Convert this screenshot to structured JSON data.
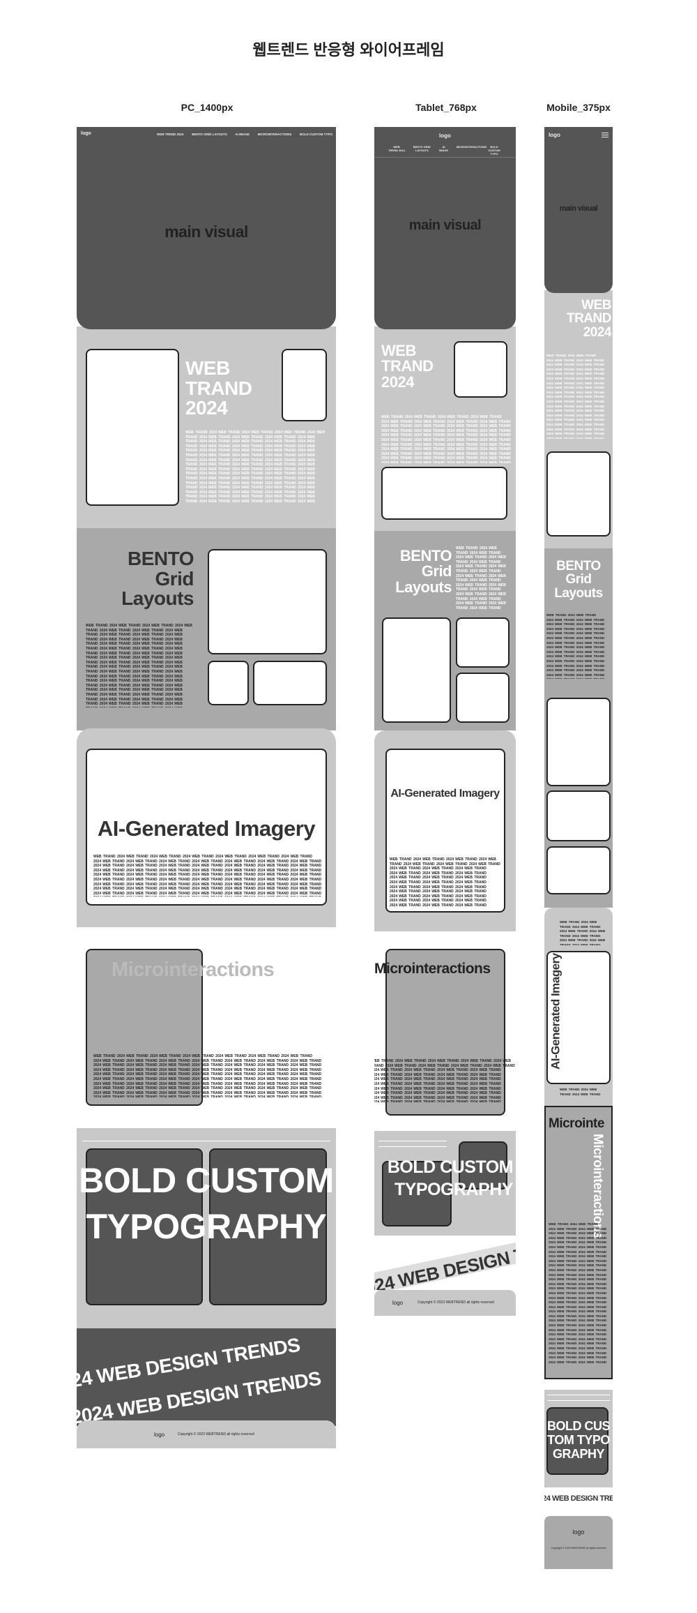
{
  "title": "웹트렌드 반응형 와이어프레임",
  "columns": [
    "PC_1400px",
    "Tablet_768px",
    "Mobile_375px"
  ],
  "nav": {
    "logo": "logo",
    "items": [
      "WEB TREND 2024",
      "BENTO GRID LAYOUTS",
      "AI IMAGE",
      "MICROINTERACTIONS",
      "BOLD CUSTOM TYPO"
    ]
  },
  "sections": {
    "main_visual": "main visual",
    "hero": "WEB TRAND 2024",
    "bento": "BENTO Grid Layouts",
    "ai": "AI-Generated Imagery",
    "micro": "Microinteractions",
    "bold": "BOLD CUSTOM TYPOGRAPHY",
    "marquee": "2024 WEB DESIGN TRENDS"
  },
  "filler": "WEB TRAND 2024",
  "footer": {
    "logo": "logo",
    "copyright": "Copyright © 2023 WEBTREND all rights reserved"
  }
}
